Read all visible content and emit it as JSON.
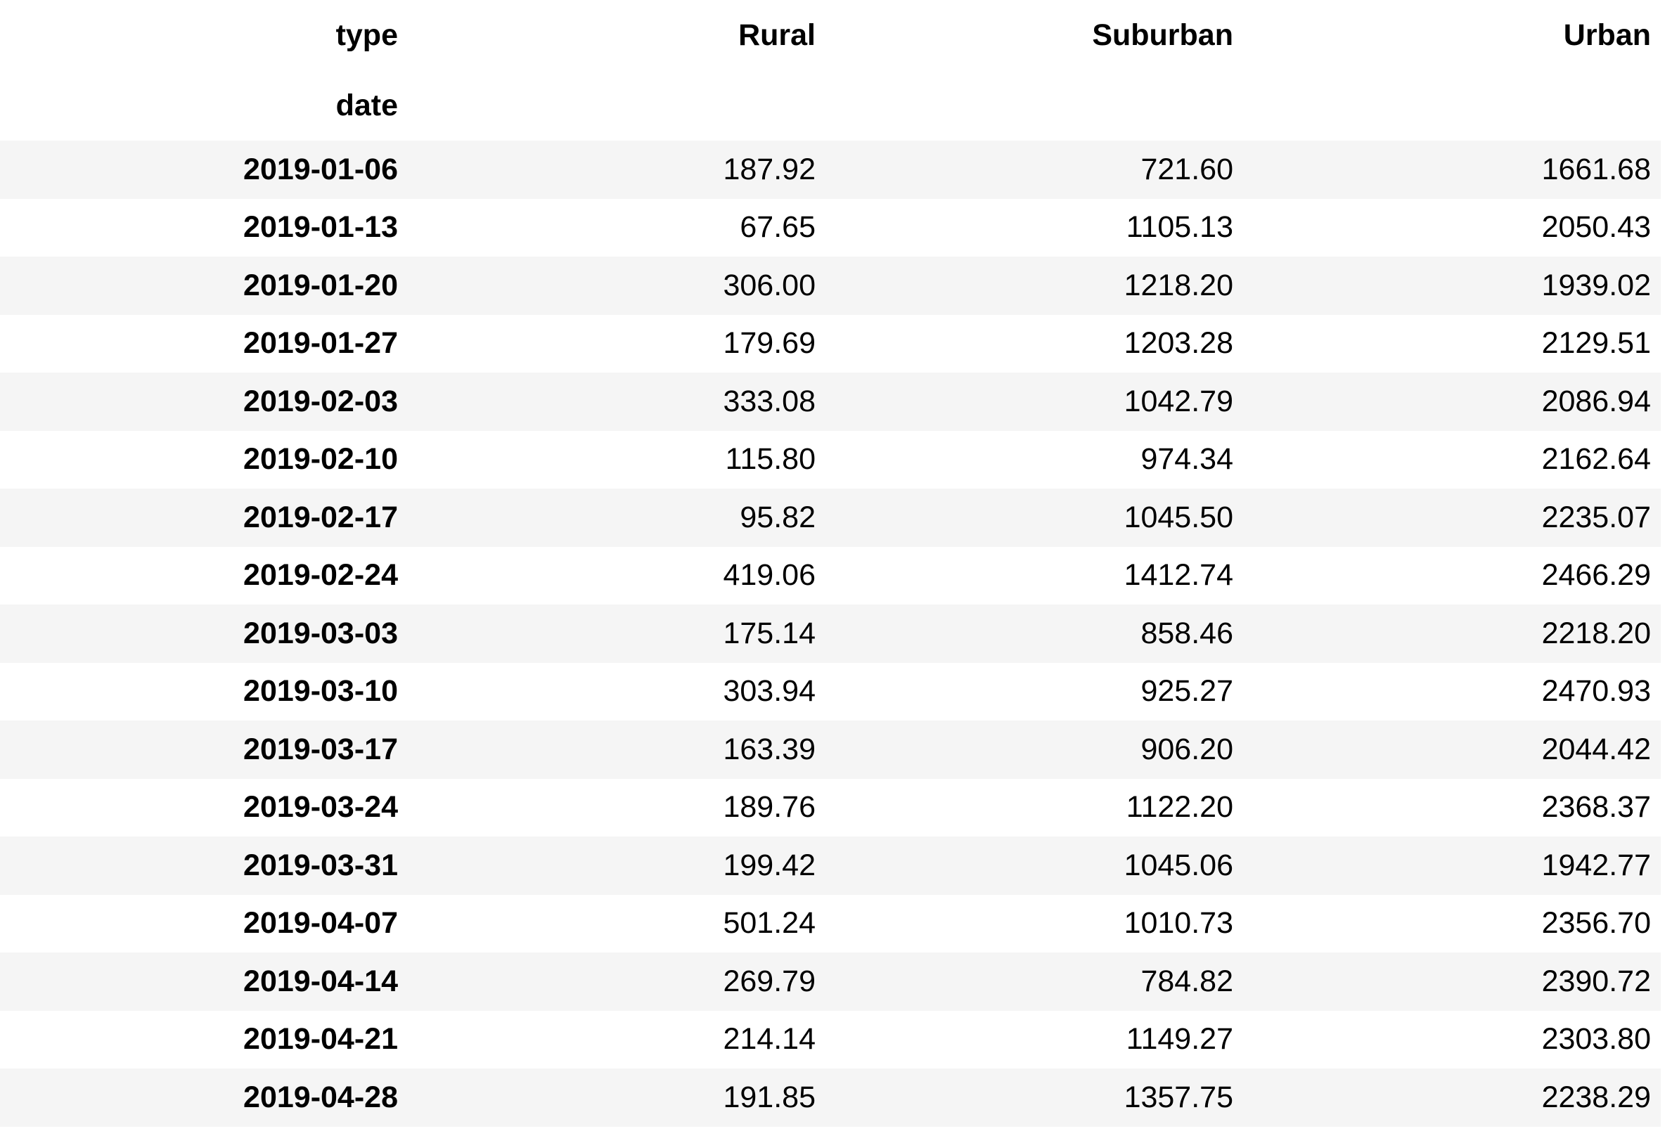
{
  "table": {
    "columns_name": "type",
    "index_name": "date",
    "columns": [
      "Rural",
      "Suburban",
      "Urban"
    ],
    "rows": [
      {
        "date": "2019-01-06",
        "values": [
          "187.92",
          "721.60",
          "1661.68"
        ]
      },
      {
        "date": "2019-01-13",
        "values": [
          "67.65",
          "1105.13",
          "2050.43"
        ]
      },
      {
        "date": "2019-01-20",
        "values": [
          "306.00",
          "1218.20",
          "1939.02"
        ]
      },
      {
        "date": "2019-01-27",
        "values": [
          "179.69",
          "1203.28",
          "2129.51"
        ]
      },
      {
        "date": "2019-02-03",
        "values": [
          "333.08",
          "1042.79",
          "2086.94"
        ]
      },
      {
        "date": "2019-02-10",
        "values": [
          "115.80",
          "974.34",
          "2162.64"
        ]
      },
      {
        "date": "2019-02-17",
        "values": [
          "95.82",
          "1045.50",
          "2235.07"
        ]
      },
      {
        "date": "2019-02-24",
        "values": [
          "419.06",
          "1412.74",
          "2466.29"
        ]
      },
      {
        "date": "2019-03-03",
        "values": [
          "175.14",
          "858.46",
          "2218.20"
        ]
      },
      {
        "date": "2019-03-10",
        "values": [
          "303.94",
          "925.27",
          "2470.93"
        ]
      },
      {
        "date": "2019-03-17",
        "values": [
          "163.39",
          "906.20",
          "2044.42"
        ]
      },
      {
        "date": "2019-03-24",
        "values": [
          "189.76",
          "1122.20",
          "2368.37"
        ]
      },
      {
        "date": "2019-03-31",
        "values": [
          "199.42",
          "1045.06",
          "1942.77"
        ]
      },
      {
        "date": "2019-04-07",
        "values": [
          "501.24",
          "1010.73",
          "2356.70"
        ]
      },
      {
        "date": "2019-04-14",
        "values": [
          "269.79",
          "784.82",
          "2390.72"
        ]
      },
      {
        "date": "2019-04-21",
        "values": [
          "214.14",
          "1149.27",
          "2303.80"
        ]
      },
      {
        "date": "2019-04-28",
        "values": [
          "191.85",
          "1357.75",
          "2238.29"
        ]
      }
    ]
  },
  "colors": {
    "stripe": "#f5f5f5",
    "background": "#ffffff",
    "text": "#000000"
  }
}
